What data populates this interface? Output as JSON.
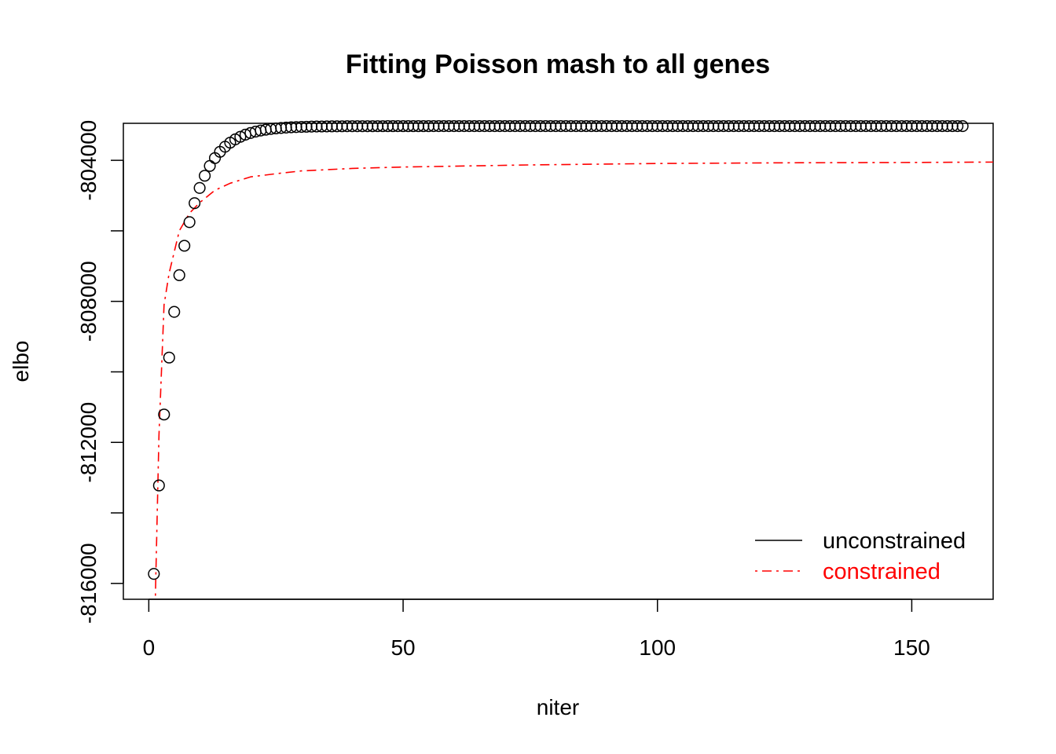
{
  "chart_data": {
    "type": "scatter",
    "title": "Fitting Poisson mash to all genes",
    "xlabel": "niter",
    "ylabel": "elbo",
    "xlim": [
      -5,
      166
    ],
    "ylim": [
      -816450,
      -802950
    ],
    "x_ticks": [
      0,
      50,
      100,
      150
    ],
    "x_tick_labels": [
      "0",
      "50",
      "100",
      "150"
    ],
    "y_ticks": [
      -816000,
      -814000,
      -812000,
      -810000,
      -808000,
      -806000,
      -804000
    ],
    "y_tick_labels": [
      "-816000",
      "",
      "-812000",
      "",
      "-808000",
      "",
      "-804000"
    ],
    "legend": {
      "position": "bottom-right",
      "entries": [
        {
          "label": "unconstrained",
          "color": "#000000",
          "line_style": "solid"
        },
        {
          "label": "constrained",
          "color": "#ff0000",
          "line_style": "dotdash"
        }
      ]
    },
    "series": [
      {
        "name": "unconstrained",
        "style": "points",
        "marker": "open-circle",
        "color": "#000000",
        "generator": {
          "kind": "exponential-approach",
          "start_x": 1,
          "end_x": 160,
          "y_start": -815730,
          "y_asymptote": -803030,
          "rate": 0.22
        }
      },
      {
        "name": "constrained",
        "style": "line",
        "line_style": "dotdash",
        "color": "#ff0000",
        "key_points": [
          [
            1.3,
            -816350
          ],
          [
            2,
            -811800
          ],
          [
            3,
            -808100
          ],
          [
            4,
            -807200
          ],
          [
            5,
            -806600
          ],
          [
            6,
            -806000
          ],
          [
            8,
            -805500
          ],
          [
            10,
            -805200
          ],
          [
            13,
            -804850
          ],
          [
            16,
            -804650
          ],
          [
            20,
            -804470
          ],
          [
            25,
            -804380
          ],
          [
            30,
            -804300
          ],
          [
            40,
            -804230
          ],
          [
            50,
            -804190
          ],
          [
            75,
            -804130
          ],
          [
            100,
            -804090
          ],
          [
            125,
            -804070
          ],
          [
            150,
            -804060
          ],
          [
            166,
            -804050
          ]
        ]
      }
    ]
  }
}
